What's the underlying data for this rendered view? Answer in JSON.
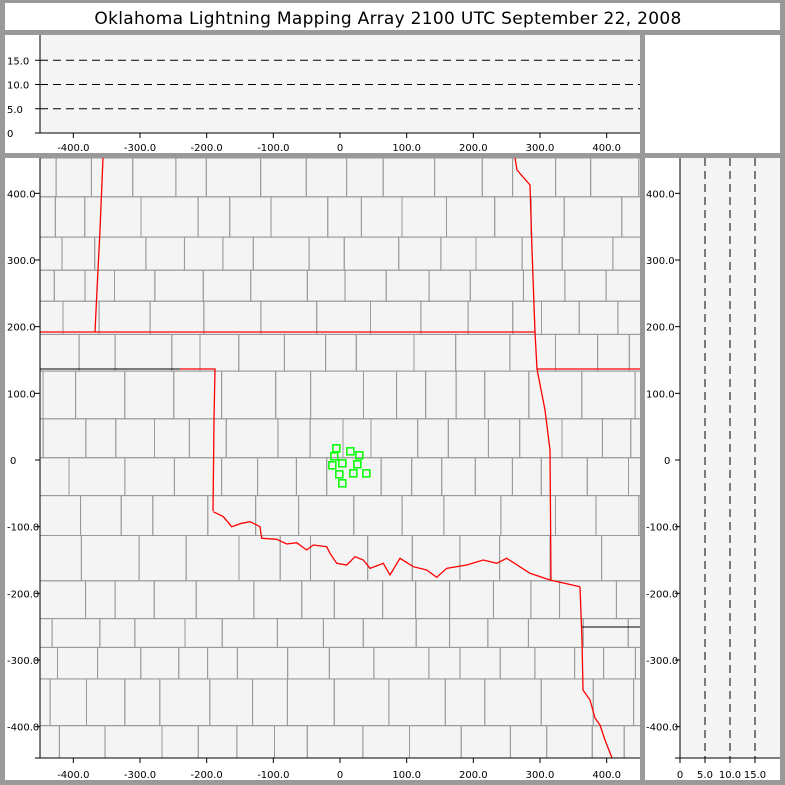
{
  "title": "Oklahoma Lightning Mapping Array   2100 UTC  September 22, 2008",
  "colors": {
    "state_border": "#ff0000",
    "county_border": "#999999",
    "source_marker": "#00ff00",
    "plot_bg": "#f4f4f4",
    "frame": "#999999"
  },
  "chart_data": {
    "type": "scatter",
    "plan_view": {
      "x_ticks": [
        "-400.0",
        "-300.0",
        "-200.0",
        "-100.0",
        "0",
        "100.0",
        "200.0",
        "300.0",
        "400.0"
      ],
      "x_tick_values": [
        -400,
        -300,
        -200,
        -100,
        0,
        100,
        200,
        300,
        400
      ],
      "y_ticks": [
        "400.0",
        "300.0",
        "200.0",
        "100.0",
        "0",
        "-100.0",
        "-200.0",
        "-300.0",
        "-400.0"
      ],
      "y_tick_values": [
        400,
        300,
        200,
        100,
        0,
        -100,
        -200,
        -300,
        -400
      ],
      "xlim": [
        -450,
        450
      ],
      "ylim": [
        -447,
        453
      ],
      "points": [
        {
          "x": -5.5,
          "y": 17.5
        },
        {
          "x": 15.5,
          "y": 13
        },
        {
          "x": 29,
          "y": 7
        },
        {
          "x": -8.5,
          "y": 5.5
        },
        {
          "x": 3.5,
          "y": -5
        },
        {
          "x": -11.5,
          "y": -8
        },
        {
          "x": 26,
          "y": -6.5
        },
        {
          "x": -1,
          "y": -21.5
        },
        {
          "x": 20,
          "y": -20
        },
        {
          "x": 39.5,
          "y": -20
        },
        {
          "x": 3.5,
          "y": -35
        }
      ]
    },
    "altitude_ew": {
      "y_ticks": [
        "0",
        "5.0",
        "10.0",
        "15.0"
      ],
      "y_tick_values": [
        0,
        5,
        10,
        15
      ],
      "ylim": [
        0,
        20
      ],
      "grid": "dashed"
    },
    "altitude_ns": {
      "x_ticks": [
        "0",
        "5.0",
        "10.0",
        "15.0"
      ],
      "x_tick_values": [
        0,
        5,
        10,
        15
      ],
      "xlim": [
        0,
        20
      ],
      "grid": "dashed"
    }
  }
}
